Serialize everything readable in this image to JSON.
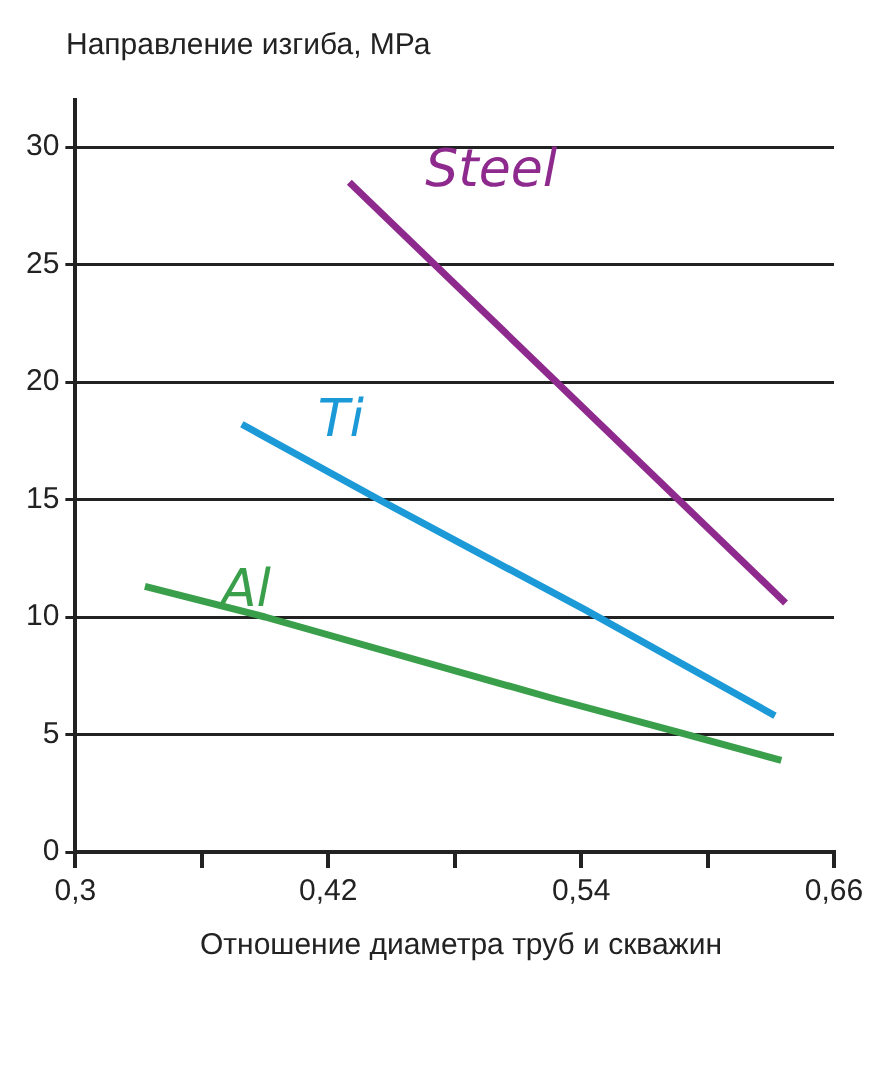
{
  "chart_data": {
    "type": "line",
    "ylabel": "Направление изгиба, МРа",
    "xlabel": "Отношение диаметра труб и скважин",
    "xlim": [
      0.3,
      0.66
    ],
    "xticks": [
      {
        "value": 0.3,
        "label": "0,3"
      },
      {
        "value": 0.36,
        "label": null
      },
      {
        "value": 0.42,
        "label": "0,42"
      },
      {
        "value": 0.48,
        "label": null
      },
      {
        "value": 0.54,
        "label": "0,54"
      },
      {
        "value": 0.6,
        "label": null
      },
      {
        "value": 0.66,
        "label": "0,66"
      }
    ],
    "ylim": [
      0,
      32
    ],
    "yticks": [
      0,
      5,
      10,
      15,
      20,
      25,
      30
    ],
    "grid": "y",
    "legend": false,
    "marker": "none",
    "line_style": "solid",
    "series": [
      {
        "name": "Steel",
        "color": "#8e2a8e",
        "x": [
          0.43,
          0.637
        ],
        "values": [
          28.5,
          10.6
        ]
      },
      {
        "name": "Ti",
        "color": "#1c9ad8",
        "x": [
          0.379,
          0.444,
          0.542,
          0.632
        ],
        "values": [
          18.2,
          15.0,
          10.3,
          5.8
        ]
      },
      {
        "name": "Al",
        "color": "#3a9f4a",
        "x": [
          0.333,
          0.39,
          0.528,
          0.586,
          0.635
        ],
        "values": [
          11.3,
          10.0,
          6.5,
          5.1,
          3.9
        ]
      }
    ]
  }
}
